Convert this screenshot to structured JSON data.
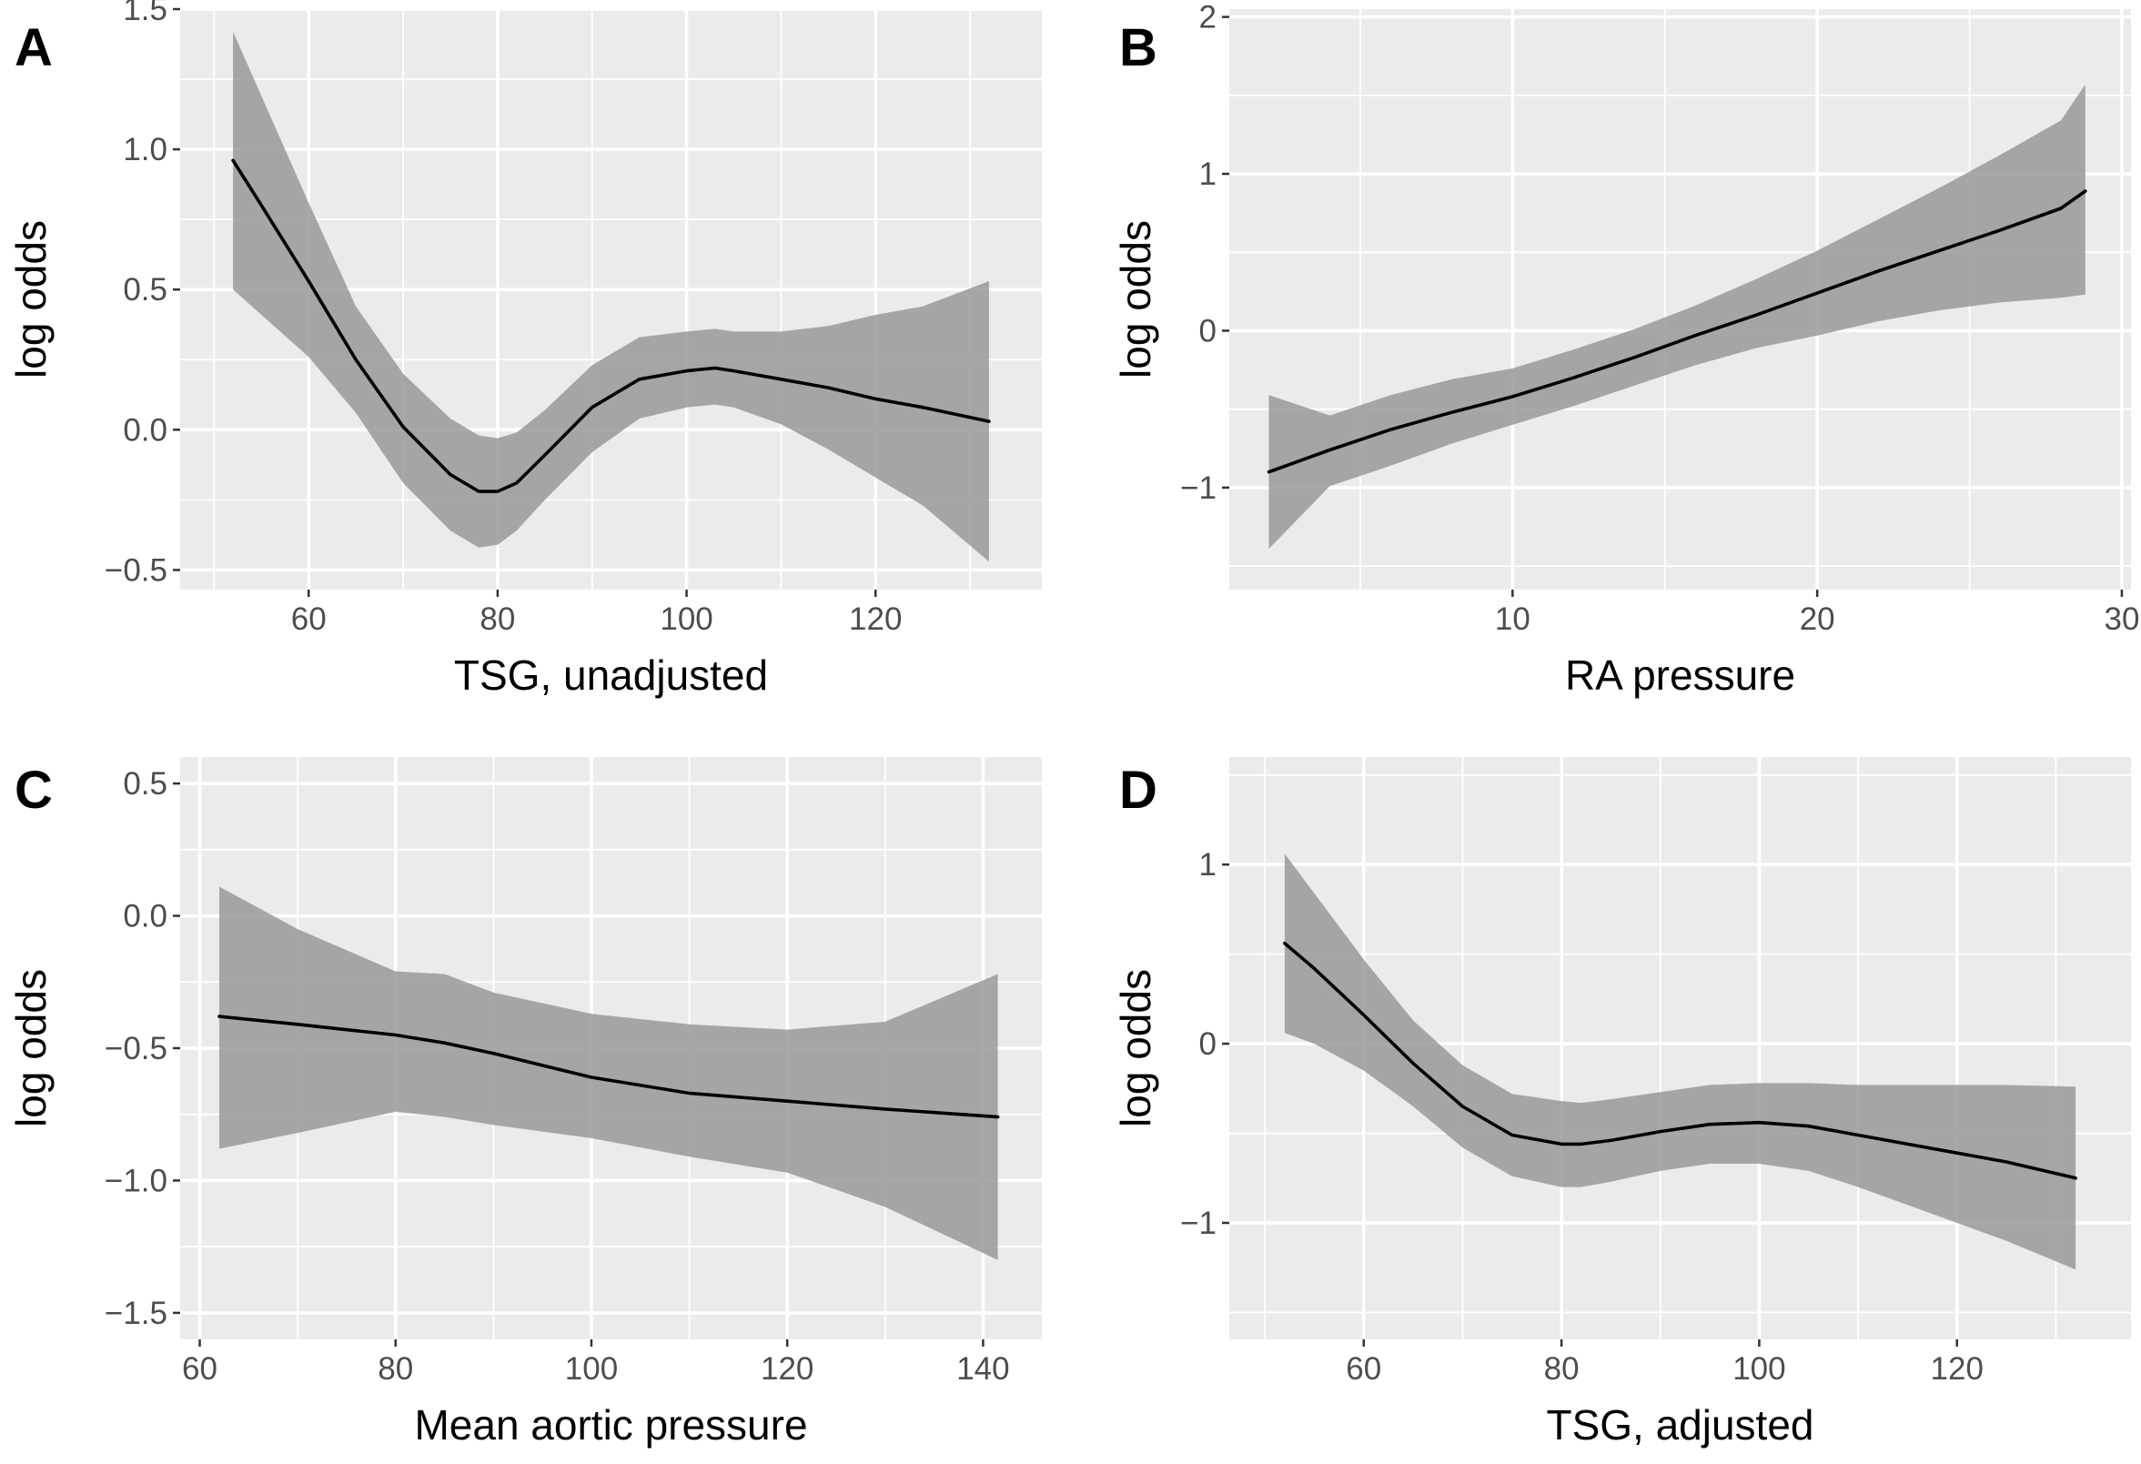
{
  "chart_data": [
    {
      "panel_label": "A",
      "type": "line",
      "title": "",
      "xlabel": "TSG, unadjusted",
      "ylabel": "log odds",
      "xlim": [
        46.4,
        137.6
      ],
      "ylim": [
        -0.57,
        1.5
      ],
      "xticks": [
        60,
        80,
        100,
        120
      ],
      "xtick_labels": [
        "60",
        "80",
        "100",
        "120"
      ],
      "yticks": [
        -0.5,
        0.0,
        0.5,
        1.0,
        1.5
      ],
      "ytick_labels": [
        "−0.5",
        "0.0",
        "0.5",
        "1.0",
        "1.5"
      ],
      "grid": true,
      "series": [
        {
          "x": [
            52,
            55,
            60,
            65,
            70,
            75,
            78,
            80,
            82,
            85,
            90,
            95,
            100,
            103,
            105,
            110,
            115,
            120,
            125,
            132
          ],
          "y": [
            0.96,
            0.8,
            0.53,
            0.25,
            0.01,
            -0.16,
            -0.22,
            -0.22,
            -0.19,
            -0.09,
            0.08,
            0.18,
            0.21,
            0.22,
            0.21,
            0.18,
            0.15,
            0.11,
            0.08,
            0.03
          ],
          "lower": [
            0.5,
            0.41,
            0.26,
            0.06,
            -0.19,
            -0.36,
            -0.42,
            -0.41,
            -0.36,
            -0.25,
            -0.08,
            0.04,
            0.08,
            0.09,
            0.08,
            0.02,
            -0.07,
            -0.17,
            -0.27,
            -0.47
          ],
          "upper": [
            1.42,
            1.19,
            0.81,
            0.44,
            0.2,
            0.04,
            -0.02,
            -0.03,
            -0.01,
            0.07,
            0.23,
            0.33,
            0.35,
            0.36,
            0.35,
            0.35,
            0.37,
            0.41,
            0.44,
            0.53
          ]
        }
      ]
    },
    {
      "panel_label": "B",
      "type": "line",
      "title": "",
      "xlabel": "RA pressure",
      "ylabel": "log odds",
      "xlim": [
        0.7,
        30.3
      ],
      "ylim": [
        -1.65,
        2.05
      ],
      "xticks": [
        10,
        20,
        30
      ],
      "xtick_labels": [
        "10",
        "20",
        "30"
      ],
      "yticks": [
        -1,
        0,
        1,
        2
      ],
      "ytick_labels": [
        "−1",
        "0",
        "1",
        "2"
      ],
      "grid": true,
      "series": [
        {
          "x": [
            2,
            4,
            6,
            8,
            10,
            12,
            14,
            16,
            18,
            20,
            22,
            24,
            26,
            28,
            28.8
          ],
          "y": [
            -0.9,
            -0.76,
            -0.63,
            -0.52,
            -0.42,
            -0.3,
            -0.17,
            -0.03,
            0.1,
            0.24,
            0.38,
            0.51,
            0.64,
            0.78,
            0.89
          ],
          "lower": [
            -1.39,
            -0.99,
            -0.86,
            -0.72,
            -0.6,
            -0.48,
            -0.35,
            -0.22,
            -0.11,
            -0.03,
            0.06,
            0.13,
            0.18,
            0.21,
            0.23
          ],
          "upper": [
            -0.41,
            -0.54,
            -0.41,
            -0.31,
            -0.24,
            -0.12,
            0.01,
            0.16,
            0.33,
            0.51,
            0.71,
            0.91,
            1.12,
            1.34,
            1.57
          ]
        }
      ]
    },
    {
      "panel_label": "C",
      "type": "line",
      "title": "",
      "xlabel": "Mean aortic pressure",
      "ylabel": "log odds",
      "xlim": [
        58,
        146
      ],
      "ylim": [
        -1.6,
        0.6
      ],
      "xticks": [
        60,
        80,
        100,
        120,
        140
      ],
      "xtick_labels": [
        "60",
        "80",
        "100",
        "120",
        "140"
      ],
      "yticks": [
        -1.5,
        -1.0,
        -0.5,
        0.0,
        0.5
      ],
      "ytick_labels": [
        "−1.5",
        "−1.0",
        "−0.5",
        "0.0",
        "0.5"
      ],
      "grid": true,
      "series": [
        {
          "x": [
            62,
            70,
            80,
            85,
            90,
            100,
            110,
            120,
            130,
            141.5
          ],
          "y": [
            -0.38,
            -0.41,
            -0.45,
            -0.48,
            -0.52,
            -0.61,
            -0.67,
            -0.7,
            -0.73,
            -0.76
          ],
          "lower": [
            -0.88,
            -0.82,
            -0.74,
            -0.76,
            -0.79,
            -0.84,
            -0.91,
            -0.97,
            -1.1,
            -1.3
          ],
          "upper": [
            0.11,
            -0.05,
            -0.21,
            -0.22,
            -0.29,
            -0.37,
            -0.41,
            -0.43,
            -0.4,
            -0.22
          ]
        }
      ]
    },
    {
      "panel_label": "D",
      "type": "line",
      "title": "",
      "xlabel": "TSG, adjusted",
      "ylabel": "log odds",
      "xlim": [
        46.4,
        137.6
      ],
      "ylim": [
        -1.65,
        1.6
      ],
      "xticks": [
        60,
        80,
        100,
        120
      ],
      "xtick_labels": [
        "60",
        "80",
        "100",
        "120"
      ],
      "yticks": [
        -1,
        0,
        1
      ],
      "ytick_labels": [
        "−1",
        "0",
        "1"
      ],
      "grid": true,
      "series": [
        {
          "x": [
            52,
            55,
            60,
            65,
            70,
            75,
            80,
            82,
            85,
            90,
            95,
            100,
            105,
            110,
            115,
            120,
            125,
            132
          ],
          "y": [
            0.56,
            0.42,
            0.16,
            -0.11,
            -0.35,
            -0.51,
            -0.56,
            -0.56,
            -0.54,
            -0.49,
            -0.45,
            -0.44,
            -0.46,
            -0.51,
            -0.56,
            -0.61,
            -0.66,
            -0.75
          ],
          "lower": [
            0.06,
            0.0,
            -0.15,
            -0.35,
            -0.58,
            -0.74,
            -0.8,
            -0.8,
            -0.77,
            -0.71,
            -0.67,
            -0.67,
            -0.71,
            -0.8,
            -0.9,
            -1.0,
            -1.1,
            -1.26
          ],
          "upper": [
            1.06,
            0.84,
            0.47,
            0.13,
            -0.12,
            -0.28,
            -0.32,
            -0.33,
            -0.31,
            -0.27,
            -0.23,
            -0.22,
            -0.22,
            -0.23,
            -0.23,
            -0.23,
            -0.23,
            -0.24
          ]
        }
      ]
    }
  ]
}
